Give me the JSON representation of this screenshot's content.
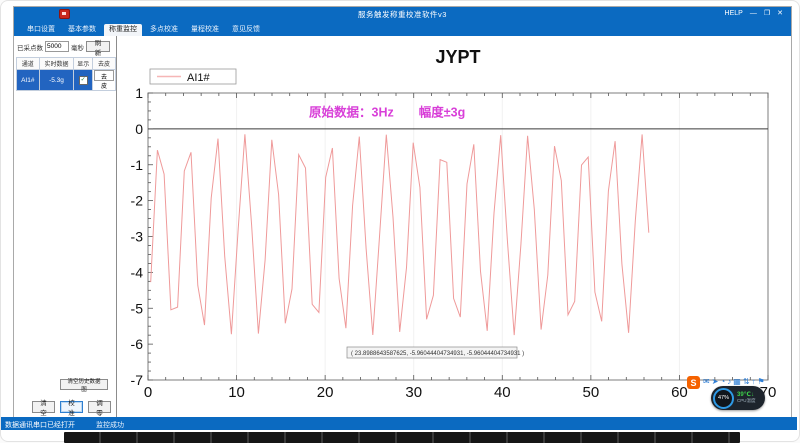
{
  "window": {
    "title": "服务触发称重校准软件v3",
    "help_label": "HELP",
    "minimize": "—",
    "maximize": "❐",
    "close": "✕"
  },
  "tabs": [
    {
      "label": "串口设置",
      "active": false
    },
    {
      "label": "基本参数",
      "active": false
    },
    {
      "label": "称重监控",
      "active": true
    },
    {
      "label": "多点校准",
      "active": false
    },
    {
      "label": "量程校准",
      "active": false
    },
    {
      "label": "意见反馈",
      "active": false
    }
  ],
  "left_panel": {
    "interval_label": "已采点数",
    "interval_value": "5000",
    "interval_unit": "毫秒",
    "refresh_button": "刷新",
    "table": {
      "headers": [
        "通道",
        "实时数据",
        "显示",
        "去皮"
      ],
      "row": {
        "channel": "AI1#",
        "value": "-5.3g",
        "display_checked": true,
        "tare_button": "去皮"
      }
    },
    "clear_history_button": "清空历史数据图",
    "clear_button": "清空",
    "calibrate_button": "校准",
    "zero_button": "调零"
  },
  "chart_data": {
    "type": "line",
    "title": "JYPT",
    "series": [
      {
        "name": "AI1#",
        "color": "#ef9a9a"
      }
    ],
    "legend_position": "top-left",
    "xlim": [
      0,
      70
    ],
    "ylim": [
      -7,
      1
    ],
    "x_ticks": [
      0,
      10,
      20,
      30,
      40,
      50,
      60,
      70
    ],
    "y_ticks": [
      1,
      0,
      -1,
      -2,
      -3,
      -4,
      -5,
      -6,
      -7
    ],
    "x_minor_step": 2,
    "y_minor_step": 0.25,
    "zero_line": 0,
    "grid": "faint vertical gridlines at major x ticks",
    "annotation": {
      "text": "原始数据：3Hz　　幅度±3g",
      "color": "#d83fd8",
      "x": 27,
      "y": 0.35
    },
    "tooltip": "( 23.8988643587625, -5.96044404734931, -5.96044404734931 )",
    "signal": {
      "description": "3 Hz sine wave, amplitude ±3 g about -2.95 g offset, aliased zigzag from sampling",
      "x_start": 0.3,
      "x_end": 57.1,
      "x_step": 0.76,
      "period": 3.2,
      "amplitude": 2.8,
      "offset": -2.95,
      "phase": 0.55
    }
  },
  "overlay": {
    "logo": "S",
    "icons": [
      {
        "name": "message-icon",
        "glyph": "✉"
      },
      {
        "name": "cursor-icon",
        "glyph": "➤"
      },
      {
        "name": "timer-icon",
        "glyph": "◔"
      },
      {
        "name": "sound-icon",
        "glyph": "♪"
      },
      {
        "name": "screen-icon",
        "glyph": "▦"
      },
      {
        "name": "transfer-icon",
        "glyph": "⇅"
      },
      {
        "name": "upload-icon",
        "glyph": "↑"
      },
      {
        "name": "flag-icon",
        "glyph": "⚑"
      }
    ],
    "cpu_usage": "47%",
    "temperature": "39℃",
    "temp_arrow": "↓",
    "temp_label": "CPU温度"
  },
  "status_bar": {
    "left_text": "数据通讯串口已经打开",
    "right_text": "监控成功"
  },
  "colors": {
    "titlebar": "#0b6ac1",
    "selected_row": "#2264c0",
    "wave": "#ef9a9a",
    "annotation": "#d83fd8"
  }
}
